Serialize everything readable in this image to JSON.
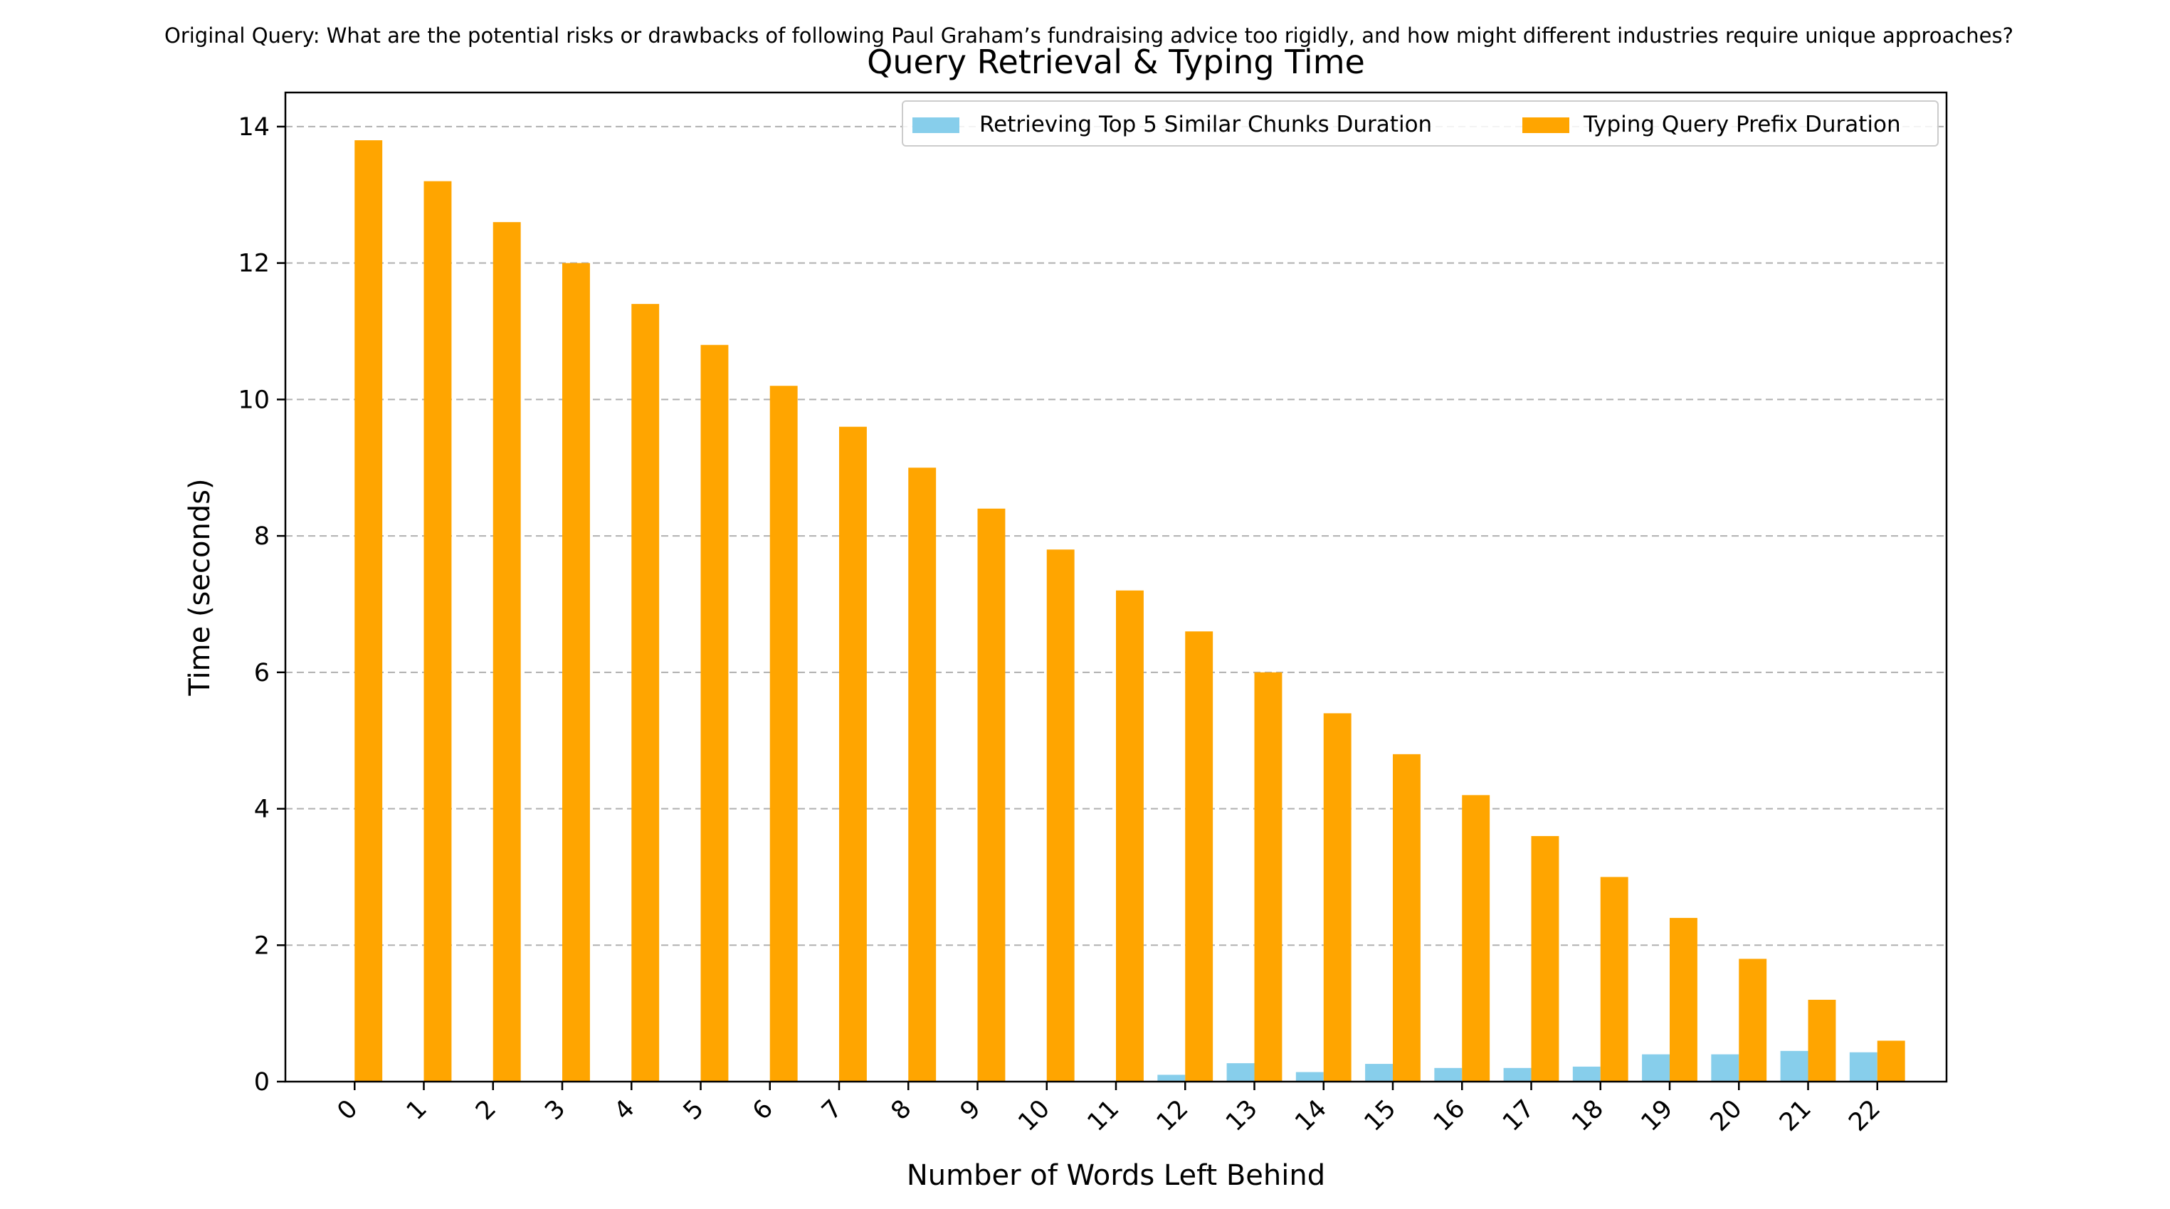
{
  "suptitle": "Original Query: What are the potential risks or drawbacks of following Paul Graham’s fundraising advice too rigidly, and how might different industries require unique approaches?",
  "colors": {
    "retrieval": "#87CEEB",
    "typing": "#FFA500",
    "grid": "#b0b0b0",
    "axis": "#000000"
  },
  "chart_data": {
    "type": "bar",
    "title": "Query Retrieval & Typing Time",
    "xlabel": "Number of Words Left Behind",
    "ylabel": "Time (seconds)",
    "categories": [
      "0",
      "1",
      "2",
      "3",
      "4",
      "5",
      "6",
      "7",
      "8",
      "9",
      "10",
      "11",
      "12",
      "13",
      "14",
      "15",
      "16",
      "17",
      "18",
      "19",
      "20",
      "21",
      "22"
    ],
    "series": [
      {
        "name": "Retrieving Top 5 Similar Chunks Duration",
        "color": "#87CEEB",
        "values": [
          0,
          0,
          0,
          0,
          0,
          0,
          0,
          0,
          0,
          0,
          0,
          0,
          0.1,
          0.27,
          0.14,
          0.26,
          0.2,
          0.2,
          0.22,
          0.4,
          0.4,
          0.45,
          0.43
        ]
      },
      {
        "name": "Typing Query Prefix Duration",
        "color": "#FFA500",
        "values": [
          13.8,
          13.2,
          12.6,
          12.0,
          11.4,
          10.8,
          10.2,
          9.6,
          9.0,
          8.4,
          7.8,
          7.2,
          6.6,
          6.0,
          5.4,
          4.8,
          4.2,
          3.6,
          3.0,
          2.4,
          1.8,
          1.2,
          0.6
        ]
      }
    ],
    "ylim": [
      0,
      14.5
    ],
    "yticks": [
      0,
      2,
      4,
      6,
      8,
      10,
      12,
      14
    ],
    "grid": "y-dashed",
    "legend": "top-right",
    "xtick_rotation": 45
  }
}
